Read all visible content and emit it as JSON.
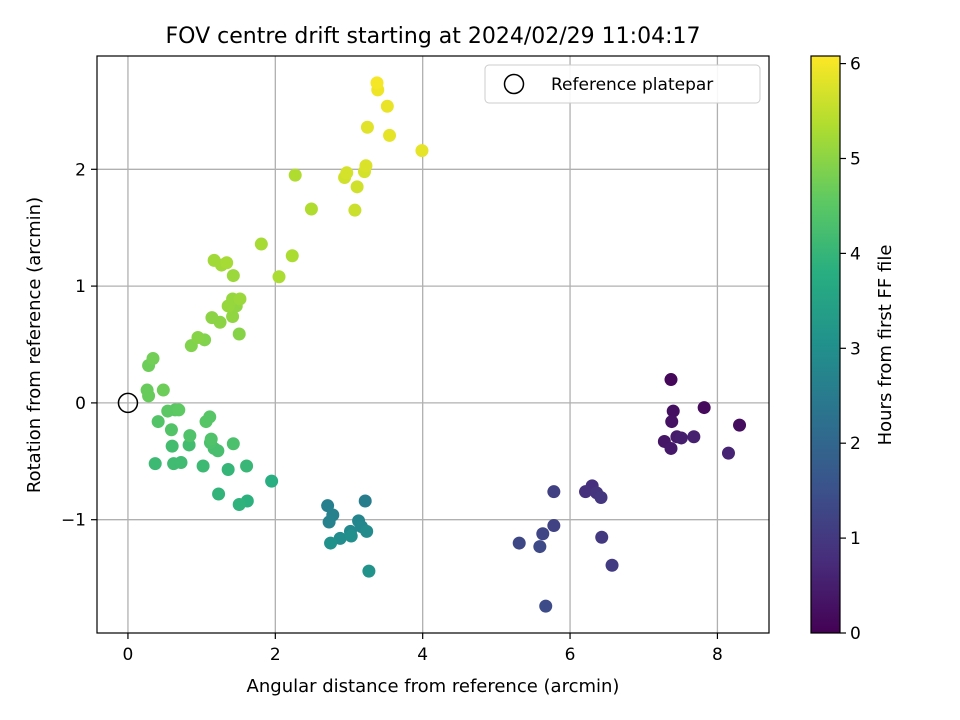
{
  "chart_data": {
    "type": "scatter",
    "title": "FOV centre drift starting at 2024/02/29 11:04:17",
    "xlabel": "Angular distance from reference (arcmin)",
    "ylabel": "Rotation from reference (arcmin)",
    "xlim": [
      -0.42,
      8.7
    ],
    "ylim": [
      -1.97,
      2.97
    ],
    "xticks": [
      0,
      2,
      4,
      6,
      8
    ],
    "yticks": [
      -1,
      0,
      1,
      2
    ],
    "grid": true,
    "legend": {
      "position": "top-right",
      "entries": [
        "Reference platepar"
      ]
    },
    "reference_point": {
      "x": 0,
      "y": 0
    },
    "colorbar": {
      "label": "Hours from first FF file",
      "colormap": "viridis",
      "range": [
        0,
        6.08
      ],
      "ticks": [
        0,
        1,
        2,
        3,
        4,
        5,
        6
      ]
    },
    "points": [
      {
        "x": 7.37,
        "y": 0.2,
        "c": 0.1
      },
      {
        "x": 7.82,
        "y": -0.04,
        "c": 0.15
      },
      {
        "x": 8.3,
        "y": -0.19,
        "c": 0.2
      },
      {
        "x": 7.4,
        "y": -0.07,
        "c": 0.25
      },
      {
        "x": 7.38,
        "y": -0.16,
        "c": 0.3
      },
      {
        "x": 7.28,
        "y": -0.33,
        "c": 0.35
      },
      {
        "x": 7.37,
        "y": -0.39,
        "c": 0.4
      },
      {
        "x": 7.45,
        "y": -0.29,
        "c": 0.45
      },
      {
        "x": 7.51,
        "y": -0.3,
        "c": 0.5
      },
      {
        "x": 7.68,
        "y": -0.29,
        "c": 0.55
      },
      {
        "x": 8.15,
        "y": -0.43,
        "c": 0.6
      },
      {
        "x": 6.3,
        "y": -0.71,
        "c": 0.8
      },
      {
        "x": 6.21,
        "y": -0.76,
        "c": 0.85
      },
      {
        "x": 6.36,
        "y": -0.77,
        "c": 0.9
      },
      {
        "x": 6.42,
        "y": -0.81,
        "c": 0.95
      },
      {
        "x": 6.43,
        "y": -1.15,
        "c": 1.0
      },
      {
        "x": 6.57,
        "y": -1.39,
        "c": 1.05
      },
      {
        "x": 5.78,
        "y": -0.76,
        "c": 1.15
      },
      {
        "x": 5.78,
        "y": -1.05,
        "c": 1.2
      },
      {
        "x": 5.63,
        "y": -1.12,
        "c": 1.25
      },
      {
        "x": 5.31,
        "y": -1.2,
        "c": 1.3
      },
      {
        "x": 5.59,
        "y": -1.23,
        "c": 1.35
      },
      {
        "x": 5.67,
        "y": -1.74,
        "c": 1.4
      },
      {
        "x": 3.22,
        "y": -0.84,
        "c": 2.55
      },
      {
        "x": 2.71,
        "y": -0.88,
        "c": 2.6
      },
      {
        "x": 2.78,
        "y": -0.96,
        "c": 2.65
      },
      {
        "x": 2.73,
        "y": -1.02,
        "c": 2.7
      },
      {
        "x": 3.13,
        "y": -1.01,
        "c": 2.75
      },
      {
        "x": 3.17,
        "y": -1.06,
        "c": 2.8
      },
      {
        "x": 3.02,
        "y": -1.1,
        "c": 2.85
      },
      {
        "x": 3.24,
        "y": -1.1,
        "c": 2.9
      },
      {
        "x": 2.88,
        "y": -1.16,
        "c": 2.95
      },
      {
        "x": 3.03,
        "y": -1.14,
        "c": 3.0
      },
      {
        "x": 2.75,
        "y": -1.2,
        "c": 3.05
      },
      {
        "x": 3.27,
        "y": -1.44,
        "c": 3.1
      },
      {
        "x": 1.95,
        "y": -0.67,
        "c": 3.8
      },
      {
        "x": 1.62,
        "y": -0.84,
        "c": 3.85
      },
      {
        "x": 1.51,
        "y": -0.87,
        "c": 3.9
      },
      {
        "x": 1.23,
        "y": -0.78,
        "c": 3.95
      },
      {
        "x": 1.36,
        "y": -0.57,
        "c": 4.0
      },
      {
        "x": 1.61,
        "y": -0.54,
        "c": 4.05
      },
      {
        "x": 1.02,
        "y": -0.54,
        "c": 4.1
      },
      {
        "x": 0.37,
        "y": -0.52,
        "c": 4.1
      },
      {
        "x": 0.62,
        "y": -0.52,
        "c": 4.15
      },
      {
        "x": 0.72,
        "y": -0.51,
        "c": 4.15
      },
      {
        "x": 0.6,
        "y": -0.37,
        "c": 4.2
      },
      {
        "x": 0.83,
        "y": -0.36,
        "c": 4.2
      },
      {
        "x": 1.17,
        "y": -0.39,
        "c": 4.25
      },
      {
        "x": 1.22,
        "y": -0.41,
        "c": 4.25
      },
      {
        "x": 1.12,
        "y": -0.34,
        "c": 4.3
      },
      {
        "x": 1.43,
        "y": -0.35,
        "c": 4.3
      },
      {
        "x": 1.13,
        "y": -0.31,
        "c": 4.35
      },
      {
        "x": 0.84,
        "y": -0.28,
        "c": 4.35
      },
      {
        "x": 0.59,
        "y": -0.23,
        "c": 4.4
      },
      {
        "x": 0.41,
        "y": -0.16,
        "c": 4.4
      },
      {
        "x": 1.06,
        "y": -0.16,
        "c": 4.45
      },
      {
        "x": 1.11,
        "y": -0.12,
        "c": 4.45
      },
      {
        "x": 0.54,
        "y": -0.07,
        "c": 4.5
      },
      {
        "x": 0.64,
        "y": -0.06,
        "c": 4.5
      },
      {
        "x": 0.69,
        "y": -0.06,
        "c": 4.55
      },
      {
        "x": 0.26,
        "y": 0.11,
        "c": 4.65
      },
      {
        "x": 0.28,
        "y": 0.06,
        "c": 4.65
      },
      {
        "x": 0.48,
        "y": 0.11,
        "c": 4.7
      },
      {
        "x": 0.28,
        "y": 0.32,
        "c": 4.7
      },
      {
        "x": 0.34,
        "y": 0.38,
        "c": 4.75
      },
      {
        "x": 0.86,
        "y": 0.49,
        "c": 4.9
      },
      {
        "x": 1.04,
        "y": 0.54,
        "c": 4.9
      },
      {
        "x": 0.95,
        "y": 0.56,
        "c": 4.95
      },
      {
        "x": 1.51,
        "y": 0.59,
        "c": 4.95
      },
      {
        "x": 1.25,
        "y": 0.69,
        "c": 5.0
      },
      {
        "x": 1.14,
        "y": 0.73,
        "c": 5.0
      },
      {
        "x": 1.42,
        "y": 0.74,
        "c": 5.05
      },
      {
        "x": 1.47,
        "y": 0.83,
        "c": 5.05
      },
      {
        "x": 1.36,
        "y": 0.83,
        "c": 5.1
      },
      {
        "x": 1.42,
        "y": 0.89,
        "c": 5.1
      },
      {
        "x": 1.52,
        "y": 0.89,
        "c": 5.15
      },
      {
        "x": 1.43,
        "y": 1.09,
        "c": 5.15
      },
      {
        "x": 1.17,
        "y": 1.22,
        "c": 5.2
      },
      {
        "x": 1.27,
        "y": 1.18,
        "c": 5.2
      },
      {
        "x": 1.34,
        "y": 1.2,
        "c": 5.25
      },
      {
        "x": 1.81,
        "y": 1.36,
        "c": 5.25
      },
      {
        "x": 2.05,
        "y": 1.08,
        "c": 5.3
      },
      {
        "x": 2.23,
        "y": 1.26,
        "c": 5.3
      },
      {
        "x": 2.49,
        "y": 1.66,
        "c": 5.35
      },
      {
        "x": 2.27,
        "y": 1.95,
        "c": 5.35
      },
      {
        "x": 3.08,
        "y": 1.65,
        "c": 5.6
      },
      {
        "x": 3.11,
        "y": 1.85,
        "c": 5.65
      },
      {
        "x": 2.94,
        "y": 1.93,
        "c": 5.65
      },
      {
        "x": 2.97,
        "y": 1.97,
        "c": 5.7
      },
      {
        "x": 3.21,
        "y": 1.98,
        "c": 5.7
      },
      {
        "x": 3.23,
        "y": 2.03,
        "c": 5.75
      },
      {
        "x": 3.25,
        "y": 2.36,
        "c": 5.8
      },
      {
        "x": 3.55,
        "y": 2.29,
        "c": 5.85
      },
      {
        "x": 3.99,
        "y": 2.16,
        "c": 5.85
      },
      {
        "x": 3.52,
        "y": 2.54,
        "c": 5.9
      },
      {
        "x": 3.39,
        "y": 2.68,
        "c": 5.95
      },
      {
        "x": 3.38,
        "y": 2.74,
        "c": 6.0
      }
    ]
  }
}
